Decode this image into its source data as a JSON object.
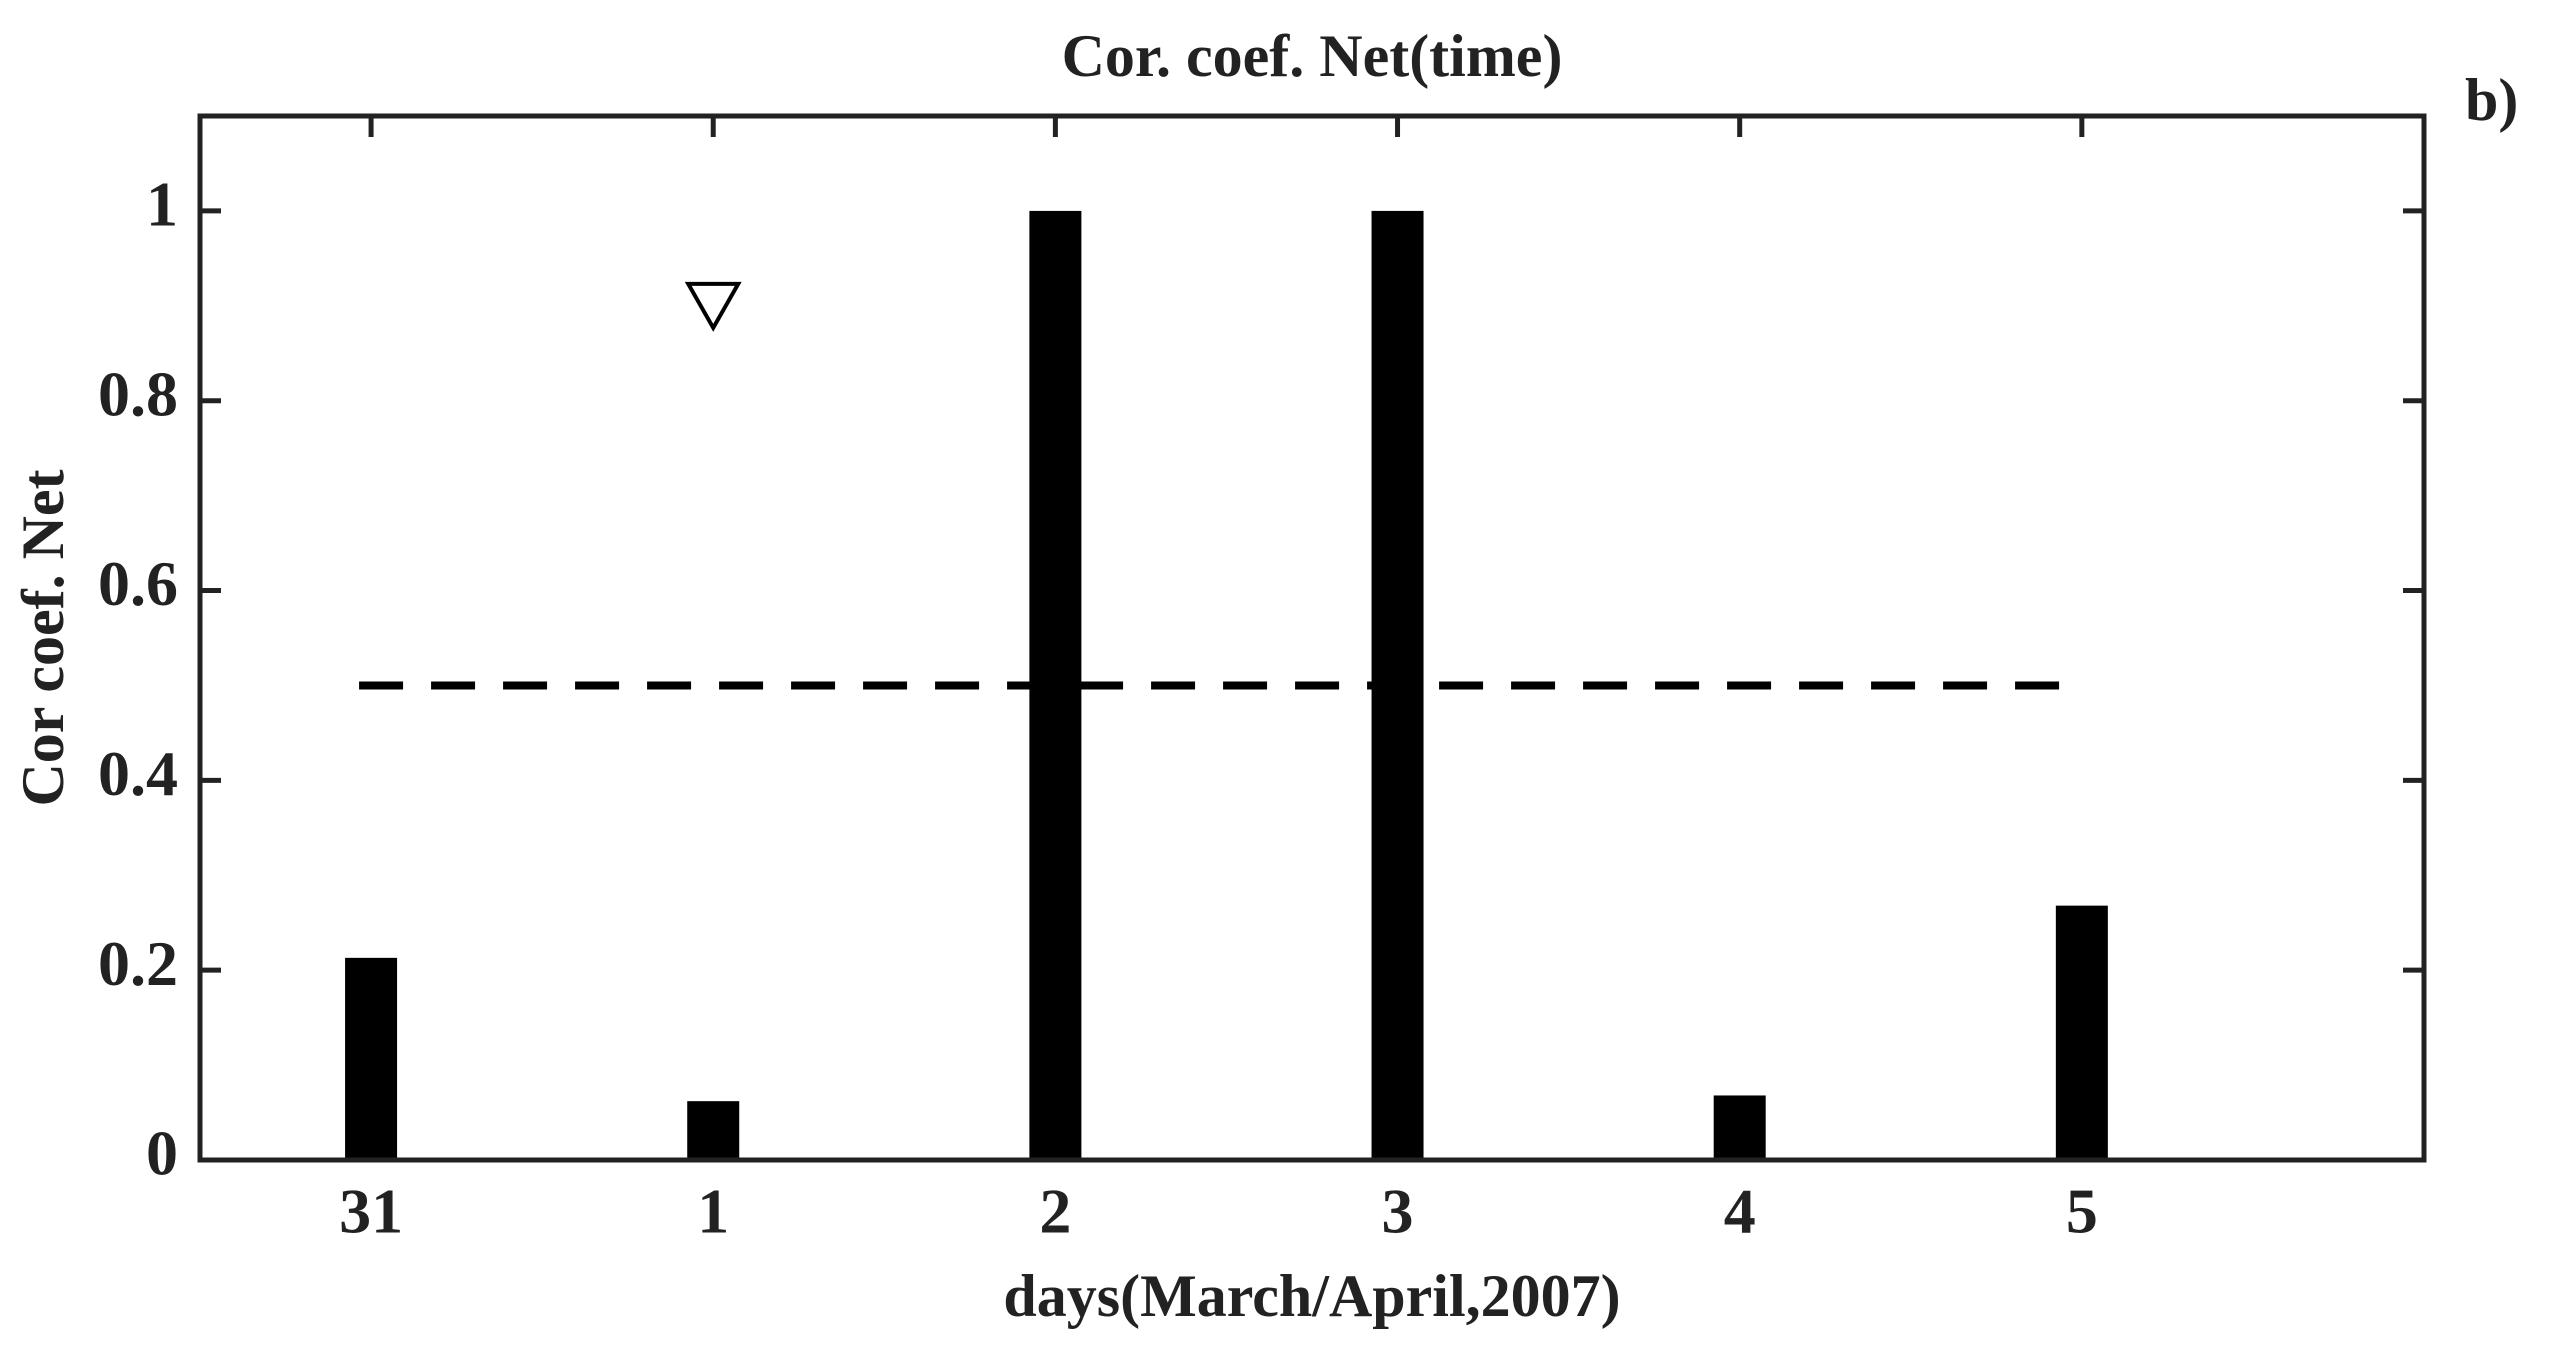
{
  "chart_data": {
    "type": "bar",
    "title": "Cor. coef. Net(time)",
    "panel_label": "b)",
    "x_label": "days(March/April,2007)",
    "y_label": "Cor coef. Net",
    "categories": [
      "31",
      "1",
      "2",
      "3",
      "4",
      "5"
    ],
    "values": [
      0.213,
      0.062,
      1.0,
      1.0,
      0.068,
      0.268
    ],
    "color": "#000000",
    "ylim": [
      0,
      1.1
    ],
    "yticks": [
      0,
      0.2,
      0.4,
      0.6,
      0.8,
      1
    ],
    "reference_line": 0.5,
    "markers": [
      {
        "category": "1",
        "value": 0.9
      }
    ],
    "grid": false
  }
}
